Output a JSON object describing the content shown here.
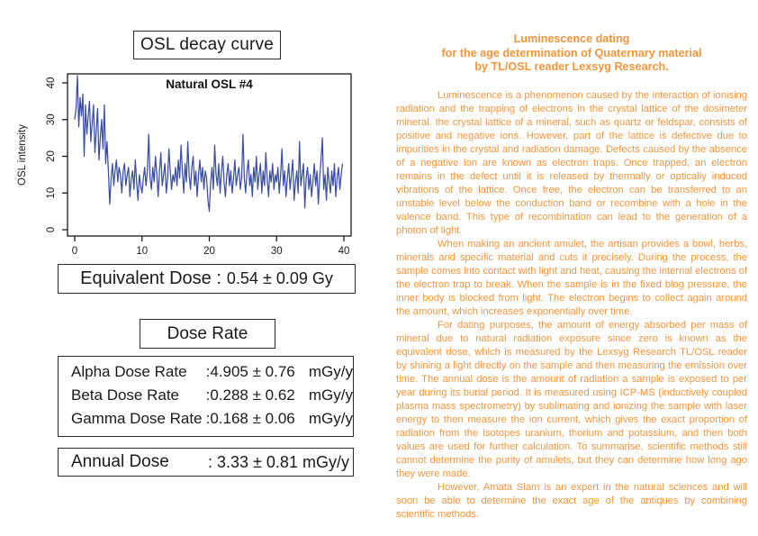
{
  "left_panel": {
    "figure_title": "OSL decay curve",
    "equivalent_dose": {
      "label": "Equivalent Dose :",
      "value": "0.54 ± 0.09 Gy"
    },
    "dose_rate_title": "Dose Rate",
    "dose_rates": [
      {
        "label": "Alpha Dose Rate",
        "value": ":4.905 ± 0.76",
        "unit": "mGy/y"
      },
      {
        "label": "Beta Dose Rate",
        "value": ":0.288 ± 0.62",
        "unit": "mGy/y"
      },
      {
        "label": "Gamma Dose Rate",
        "value": ":0.168 ± 0.06",
        "unit": "mGy/y"
      }
    ],
    "annual_dose": {
      "label": "Annual Dose",
      "value": ": 3.33 ± 0.81 mGy/y"
    }
  },
  "chart_data": {
    "type": "line",
    "title": "Natural OSL #4",
    "xlabel": "",
    "ylabel": "OSL intensity",
    "xlim": [
      0,
      40
    ],
    "ylim": [
      0,
      42
    ],
    "x_ticks": [
      0,
      10,
      20,
      30,
      40
    ],
    "y_ticks": [
      0,
      10,
      20,
      30,
      40
    ],
    "grid": false,
    "legend": "none",
    "line_color": "#3B4EA5",
    "x_start": 0,
    "x_step": 0.2,
    "values": [
      30,
      33,
      42,
      28,
      36,
      31,
      37,
      20,
      34,
      26,
      31,
      35,
      24,
      29,
      34,
      21,
      27,
      33,
      19,
      25,
      30,
      22,
      34,
      18,
      24,
      16,
      7,
      14,
      18,
      12,
      16,
      19,
      13,
      17,
      15,
      10,
      16,
      18,
      12,
      15,
      17,
      9,
      14,
      16,
      11,
      19,
      13,
      8,
      15,
      12,
      10,
      14,
      17,
      12,
      16,
      26,
      14,
      11,
      17,
      13,
      20,
      15,
      9,
      16,
      21,
      12,
      15,
      18,
      10,
      14,
      22,
      16,
      11,
      15,
      13,
      17,
      12,
      19,
      14,
      23,
      16,
      10,
      18,
      13,
      24,
      15,
      11,
      17,
      20,
      12,
      16,
      9,
      15,
      19,
      13,
      17,
      11,
      16,
      14,
      8,
      5,
      13,
      17,
      11,
      23,
      15,
      12,
      18,
      10,
      16,
      20,
      13,
      9,
      15,
      18,
      12,
      16,
      10,
      14,
      19,
      12,
      15,
      17,
      11,
      14,
      26,
      14,
      10,
      16,
      19,
      12,
      15,
      9,
      17,
      13,
      20,
      11,
      15,
      18,
      10,
      16,
      12,
      21,
      14,
      9,
      16,
      13,
      18,
      11,
      15,
      13,
      17,
      10,
      15,
      22,
      12,
      16,
      9,
      14,
      18,
      11,
      15,
      19,
      8,
      13,
      16,
      10,
      24,
      12,
      15,
      18,
      6,
      14,
      17,
      11,
      15,
      9,
      13,
      18,
      12,
      16,
      7,
      14,
      19,
      25,
      11,
      15,
      8,
      17,
      13,
      10,
      16,
      12,
      18,
      9,
      14,
      17,
      11,
      15,
      18
    ]
  },
  "right_panel": {
    "text_color": "#F7953B",
    "title_lines": [
      "Luminescence dating",
      "for the age determination of Quaternary material",
      "by TL/OSL reader Lexsyg Research."
    ],
    "paragraphs": [
      "Luminescence is a phenomenon caused by the interaction of ionising radiation and the trapping of electrons in the crystal lattice of the dosimeter mineral. the crystal lattice of a mineral, such as quartz or feldspar, consists of positive and negative ions. However, part of the lattice is defective due to impurities in the crystal and radiation damage. Defects caused by the absence of a negative ion are known as electron traps. Once trapped, an electron remains in the defect until it is released by thermally or optically induced vibrations of the lattice. Once free, the electron can be transferred to an unstable level below the conduction band or recombine with a hole in the valence band. This type of recombination can lead to the generation of a photon of light.",
      "When making an ancient amulet, the artisan provides a bowl, herbs, minerals and specific material and cuts it precisely. During the process, the sample comes into contact with light and heat, causing the internal electrons of the electron trap to break. When the sample is in the fixed blog pressure, the inner body is blocked from light. The electron begins to collect again around the amount, which increases exponentially over time.",
      "For dating purposes, the amount of energy absorbed per mass of mineral due to natural radiation exposure since zero is known as the equivalent dose, which is measured by the Lexsyg Research TL/OSL reader by shining a light directly on the sample and then measuring the emission over time. The annual dose is the amount of radiation a sample is exposed to per year during its burial period. It is measured using ICP-MS (inductively coupled plasma mass spectrometry) by sublimating and ionizing the sample with laser energy to then measure the ion current, which gives the exact proportion of radiation from the isotopes uranium, thorium and potassium, and then both values are used for further calculation. To summarise, scientific methods still cannot determine the purity of amulets, but they can determine how long ago they were made.",
      "However, Amata Siam is an expert in the natural sciences and will soon be able to determine the exact age of the antiques by combining scientific methods."
    ]
  }
}
